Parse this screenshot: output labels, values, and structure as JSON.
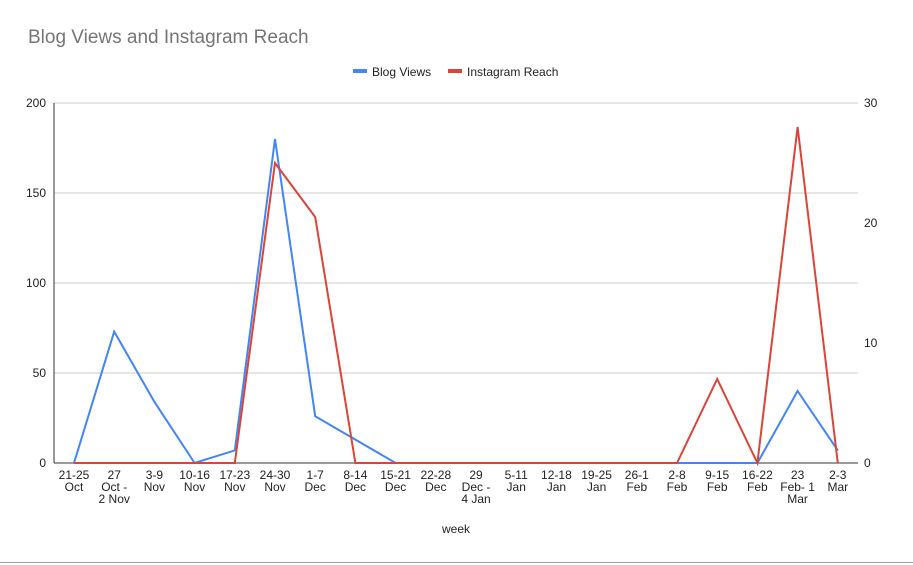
{
  "chart_data": {
    "type": "line",
    "title": "Blog Views and Instagram Reach",
    "xlabel": "week",
    "ylabel": "",
    "ylabel_right": "",
    "legend_position": "top",
    "grid": true,
    "categories": [
      [
        "21-25",
        "Oct"
      ],
      [
        "27",
        "Oct -",
        "2 Nov"
      ],
      [
        "3-9",
        "Nov"
      ],
      [
        "10-16",
        "Nov"
      ],
      [
        "17-23",
        "Nov"
      ],
      [
        "24-30",
        "Nov"
      ],
      [
        "1-7",
        "Dec"
      ],
      [
        "8-14",
        "Dec"
      ],
      [
        "15-21",
        "Dec"
      ],
      [
        "22-28",
        "Dec"
      ],
      [
        "29",
        "Dec -",
        "4 Jan"
      ],
      [
        "5-11",
        "Jan"
      ],
      [
        "12-18",
        "Jan"
      ],
      [
        "19-25",
        "Jan"
      ],
      [
        "26-1",
        "Feb"
      ],
      [
        "2-8",
        "Feb"
      ],
      [
        "9-15",
        "Feb"
      ],
      [
        "16-22",
        "Feb"
      ],
      [
        "23",
        "Feb- 1",
        "Mar"
      ],
      [
        "2-3",
        "Mar"
      ]
    ],
    "ylim": [
      0,
      200
    ],
    "yticks": [
      0,
      50,
      100,
      150,
      200
    ],
    "ylim_right": [
      0,
      30
    ],
    "yticks_right": [
      0,
      10,
      20,
      30
    ],
    "series": [
      {
        "name": "Blog Views",
        "axis": "left",
        "color": "#4285f4",
        "values": [
          0,
          73,
          34,
          0,
          7,
          180,
          26,
          13,
          0,
          0,
          0,
          0,
          0,
          0,
          0,
          0,
          0,
          0,
          40,
          7
        ]
      },
      {
        "name": "Instagram Reach",
        "axis": "right",
        "color": "#db4437",
        "values": [
          0,
          0,
          0,
          0,
          0,
          25,
          20.5,
          0,
          0,
          0,
          0,
          0,
          0,
          0,
          0,
          0,
          7,
          0,
          28,
          0
        ]
      }
    ]
  }
}
